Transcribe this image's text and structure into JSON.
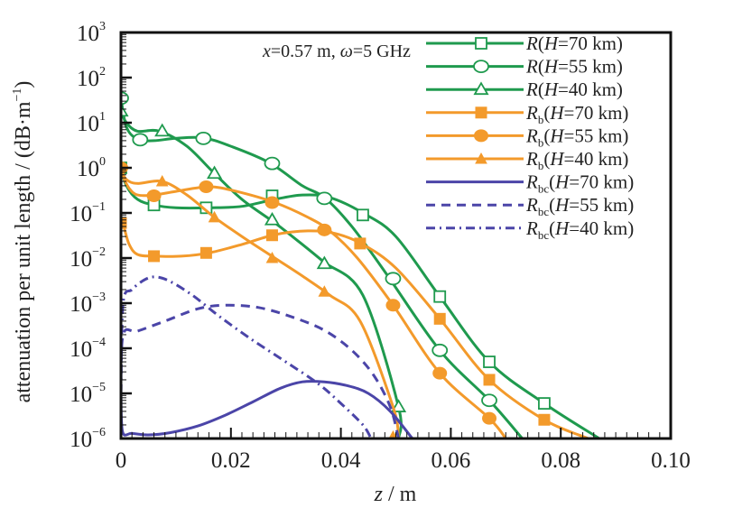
{
  "chart_data": {
    "type": "line",
    "title": "",
    "annotation": {
      "x_part": "x",
      "x_value": "=0.57 m, ",
      "w_part": "ω",
      "w_value": "=5 GHz"
    },
    "xlabel": {
      "var": "z",
      "unit": " / m"
    },
    "ylabel": "attenuation per unit length / (dB·m",
    "ylabel_sup": "−1",
    "ylabel_close": ")",
    "xscale": "linear",
    "yscale": "log",
    "xlim": [
      0,
      0.1
    ],
    "ylim": [
      1e-06,
      1000.0
    ],
    "x_ticks": [
      {
        "value": 0,
        "label": "0"
      },
      {
        "value": 0.02,
        "label": "0.02"
      },
      {
        "value": 0.04,
        "label": "0.04"
      },
      {
        "value": 0.06,
        "label": "0.06"
      },
      {
        "value": 0.08,
        "label": "0.08"
      },
      {
        "value": 0.1,
        "label": "0.10"
      }
    ],
    "y_ticks": [
      {
        "value": 1000.0,
        "base": "10",
        "exp": "3"
      },
      {
        "value": 100.0,
        "base": "10",
        "exp": "2"
      },
      {
        "value": 10.0,
        "base": "10",
        "exp": "1"
      },
      {
        "value": 1.0,
        "base": "10",
        "exp": "0"
      },
      {
        "value": 0.1,
        "base": "10",
        "exp": "−1"
      },
      {
        "value": 0.01,
        "base": "10",
        "exp": "−2"
      },
      {
        "value": 0.001,
        "base": "10",
        "exp": "−3"
      },
      {
        "value": 0.0001,
        "base": "10",
        "exp": "−4"
      },
      {
        "value": 1e-05,
        "base": "10",
        "exp": "−5"
      },
      {
        "value": 1e-06,
        "base": "10",
        "exp": "−6"
      }
    ],
    "grid": false,
    "legend_position": "top-right",
    "series": [
      {
        "name": "R(H=70 km)",
        "sym": "R",
        "sub": "",
        "h": "70",
        "color": "#1f9a4e",
        "dash": "",
        "marker": "square-open",
        "x": [
          0,
          0.001,
          0.003,
          0.006,
          0.01,
          0.016,
          0.022,
          0.028,
          0.033,
          0.038,
          0.044,
          0.05,
          0.058,
          0.067,
          0.077,
          0.087
        ],
        "y": [
          1.0,
          0.4,
          0.2,
          0.15,
          0.13,
          0.13,
          0.14,
          0.2,
          0.25,
          0.22,
          0.1,
          0.03,
          0.0014,
          5e-05,
          6e-06,
          1e-06
        ],
        "markers_x": [
          0,
          0.006,
          0.0155,
          0.0275,
          0.044,
          0.058,
          0.067,
          0.077
        ],
        "markers_y": [
          1.0,
          0.15,
          0.13,
          0.24,
          0.09,
          0.0014,
          5e-05,
          6e-06
        ]
      },
      {
        "name": "R(H=55 km)",
        "sym": "R",
        "sub": "",
        "h": "55",
        "color": "#1f9a4e",
        "dash": "",
        "marker": "circle-open",
        "x": [
          0,
          0.001,
          0.003,
          0.006,
          0.01,
          0.015,
          0.02,
          0.027,
          0.033,
          0.037,
          0.042,
          0.048,
          0.058,
          0.067,
          0.073
        ],
        "y": [
          35,
          8,
          4.3,
          4.0,
          4.5,
          4.6,
          3.0,
          1.3,
          0.4,
          0.22,
          0.05,
          0.005,
          9e-05,
          7e-06,
          1e-06
        ],
        "markers_x": [
          0,
          0.0035,
          0.015,
          0.0275,
          0.037,
          0.0495,
          0.058,
          0.067
        ],
        "markers_y": [
          35,
          4.2,
          4.5,
          1.25,
          0.21,
          0.0035,
          9e-05,
          7e-06
        ]
      },
      {
        "name": "R(H=40 km)",
        "sym": "R",
        "sub": "",
        "h": "40",
        "color": "#1f9a4e",
        "dash": "",
        "marker": "triangle-open",
        "x": [
          0,
          0.001,
          0.003,
          0.007,
          0.012,
          0.017,
          0.022,
          0.028,
          0.033,
          0.037,
          0.044,
          0.0505,
          0.0505
        ],
        "y": [
          18,
          10,
          6.5,
          6.5,
          3.0,
          0.75,
          0.2,
          0.06,
          0.02,
          0.008,
          0.0015,
          5e-06,
          1e-06
        ],
        "markers_x": [
          0,
          0.0075,
          0.017,
          0.0275,
          0.037,
          0.0505
        ],
        "markers_y": [
          18,
          6.5,
          0.75,
          0.07,
          0.0075,
          5e-06
        ]
      },
      {
        "name": "Rb(H=70 km)",
        "sym": "R",
        "sub": "b",
        "h": "70",
        "color": "#f39a2b",
        "dash": "",
        "marker": "square-filled",
        "x": [
          0,
          0.0005,
          0.0015,
          0.003,
          0.006,
          0.011,
          0.016,
          0.022,
          0.028,
          0.034,
          0.039,
          0.044,
          0.05,
          0.058,
          0.067,
          0.077,
          0.085
        ],
        "y": [
          0.06,
          0.05,
          0.02,
          0.012,
          0.011,
          0.011,
          0.013,
          0.02,
          0.033,
          0.04,
          0.035,
          0.02,
          0.006,
          0.00045,
          2e-05,
          2.6e-06,
          1e-06
        ],
        "markers_x": [
          0,
          0.006,
          0.0155,
          0.0275,
          0.0435,
          0.058,
          0.067,
          0.077
        ],
        "markers_y": [
          0.06,
          0.011,
          0.013,
          0.032,
          0.021,
          0.00045,
          2e-05,
          2.6e-06
        ]
      },
      {
        "name": "Rb(H=55 km)",
        "sym": "R",
        "sub": "b",
        "h": "55",
        "color": "#f39a2b",
        "dash": "",
        "marker": "circle-filled",
        "x": [
          0,
          0.0005,
          0.0015,
          0.003,
          0.006,
          0.01,
          0.016,
          0.021,
          0.028,
          0.034,
          0.038,
          0.043,
          0.0495,
          0.058,
          0.067,
          0.07
        ],
        "y": [
          1.0,
          0.6,
          0.35,
          0.25,
          0.25,
          0.3,
          0.38,
          0.3,
          0.17,
          0.08,
          0.04,
          0.01,
          0.0009,
          2.8e-05,
          2.8e-06,
          1e-06
        ],
        "markers_x": [
          0,
          0.006,
          0.0155,
          0.0275,
          0.037,
          0.0495,
          0.058,
          0.067
        ],
        "markers_y": [
          1.0,
          0.24,
          0.38,
          0.17,
          0.042,
          0.0009,
          2.8e-05,
          2.8e-06
        ]
      },
      {
        "name": "Rb(H=40 km)",
        "sym": "R",
        "sub": "b",
        "h": "40",
        "color": "#f39a2b",
        "dash": "",
        "marker": "triangle-filled",
        "x": [
          0,
          0.001,
          0.003,
          0.0075,
          0.012,
          0.017,
          0.022,
          0.028,
          0.033,
          0.038,
          0.0435,
          0.0495,
          0.0505
        ],
        "y": [
          0.9,
          0.55,
          0.45,
          0.5,
          0.25,
          0.08,
          0.03,
          0.01,
          0.004,
          0.0015,
          0.0004,
          5e-06,
          1e-06
        ],
        "markers_x": [
          0.0075,
          0.017,
          0.0275,
          0.037,
          0.0495
        ],
        "markers_y": [
          0.5,
          0.08,
          0.01,
          0.0018,
          1.1e-06
        ]
      },
      {
        "name": "Rbc(H=70 km)",
        "sym": "R",
        "sub": "bc",
        "h": "70",
        "color": "#4b45a8",
        "dash": "",
        "marker": "none",
        "x": [
          0,
          0.0003,
          0.002,
          0.005,
          0.009,
          0.014,
          0.019,
          0.024,
          0.029,
          0.033,
          0.037,
          0.041,
          0.045,
          0.049,
          0.053
        ],
        "y": [
          1e-05,
          1.4e-06,
          1.3e-06,
          1.2e-06,
          1.35e-06,
          1.9e-06,
          3.3e-06,
          6.5e-06,
          1.3e-05,
          1.8e-05,
          1.8e-05,
          1.5e-05,
          1e-05,
          4e-06,
          1e-06
        ]
      },
      {
        "name": "Rbc(H=55 km)",
        "sym": "R",
        "sub": "bc",
        "h": "55",
        "color": "#4b45a8",
        "dash": "10,7",
        "marker": "none",
        "x": [
          0,
          0.0004,
          0.003,
          0.008,
          0.014,
          0.019,
          0.025,
          0.031,
          0.037,
          0.042,
          0.046,
          0.049,
          0.0505
        ],
        "y": [
          1e-05,
          0.0002,
          0.00024,
          0.0004,
          0.00075,
          0.0009,
          0.0008,
          0.0005,
          0.00025,
          9e-05,
          2.5e-05,
          5e-06,
          1e-06
        ]
      },
      {
        "name": "Rbc(H=40 km)",
        "sym": "R",
        "sub": "bc",
        "h": "40",
        "color": "#4b45a8",
        "dash": "10,5,2,5",
        "marker": "none",
        "x": [
          0,
          0.0004,
          0.002,
          0.0045,
          0.0065,
          0.009,
          0.013,
          0.018,
          0.024,
          0.03,
          0.036,
          0.04,
          0.044,
          0.0455
        ],
        "y": [
          1e-05,
          0.001,
          0.002,
          0.0034,
          0.0038,
          0.003,
          0.0015,
          0.0005,
          0.00015,
          5e-05,
          1.6e-05,
          6e-06,
          2e-06,
          1e-06
        ]
      }
    ]
  }
}
